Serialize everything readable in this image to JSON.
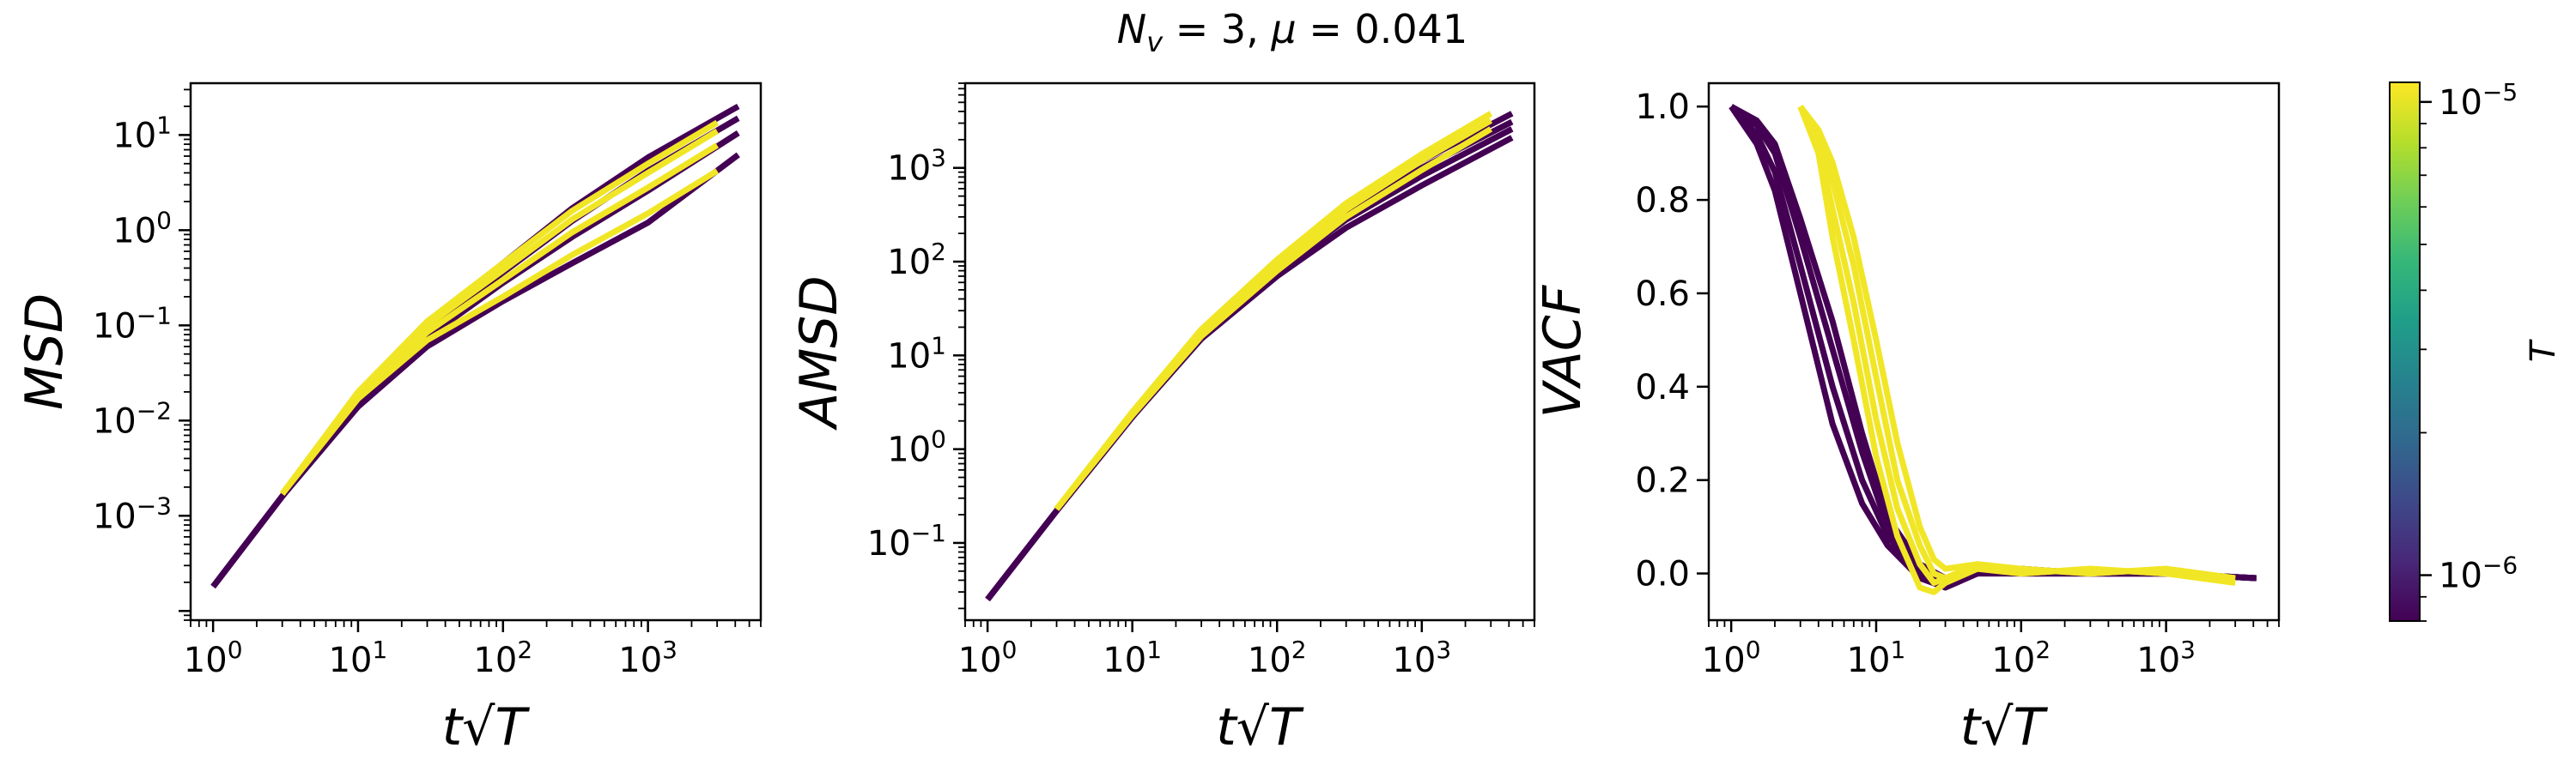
{
  "figure": {
    "title_parts": [
      "N",
      "v",
      " = 3, ",
      "μ",
      " = 0.041"
    ]
  },
  "colorbar": {
    "label": "T",
    "scale": "log",
    "range": [
      8e-07,
      1.1e-05
    ],
    "ticks": [
      {
        "value": 1e-05,
        "base": "10",
        "exp": "−5"
      },
      {
        "value": 1e-06,
        "base": "10",
        "exp": "−6"
      }
    ],
    "colormap": [
      "#440154",
      "#482878",
      "#3e4989",
      "#31688e",
      "#26828e",
      "#1f9e89",
      "#35b779",
      "#6ece58",
      "#b5de2b",
      "#fde725"
    ]
  },
  "chart_data": [
    {
      "type": "line",
      "xlabel": "t√T",
      "ylabel": "MSD",
      "xscale": "log",
      "yscale": "log",
      "xlim": [
        0.7,
        6000
      ],
      "ylim": [
        8e-05,
        35
      ],
      "xticks": [
        {
          "v": 1,
          "base": "10",
          "exp": "0"
        },
        {
          "v": 10,
          "base": "10",
          "exp": "1"
        },
        {
          "v": 100,
          "base": "10",
          "exp": "2"
        },
        {
          "v": 1000,
          "base": "10",
          "exp": "3"
        }
      ],
      "yticks": [
        {
          "v": 0.001,
          "base": "10",
          "exp": "−3"
        },
        {
          "v": 0.01,
          "base": "10",
          "exp": "−2"
        },
        {
          "v": 0.1,
          "base": "10",
          "exp": "−1"
        },
        {
          "v": 1,
          "base": "10",
          "exp": "0"
        },
        {
          "v": 10,
          "base": "10",
          "exp": "1"
        }
      ],
      "series": [
        {
          "T": 8e-07,
          "x": [
            1,
            3,
            10,
            30,
            100,
            300,
            1000,
            4200
          ],
          "y": [
            0.00018,
            0.0016,
            0.014,
            0.06,
            0.18,
            0.45,
            1.2,
            6.2
          ]
        },
        {
          "T": 8e-07,
          "x": [
            1,
            3,
            10,
            30,
            100,
            300,
            1000,
            4200
          ],
          "y": [
            0.00018,
            0.0016,
            0.015,
            0.075,
            0.28,
            0.85,
            2.6,
            10.5
          ]
        },
        {
          "T": 8e-07,
          "x": [
            1,
            3,
            10,
            30,
            100,
            300,
            1000,
            4200
          ],
          "y": [
            0.00018,
            0.0016,
            0.016,
            0.09,
            0.36,
            1.25,
            4.2,
            15.0
          ]
        },
        {
          "T": 8e-07,
          "x": [
            1,
            3,
            10,
            30,
            100,
            300,
            1000,
            4200
          ],
          "y": [
            0.00018,
            0.0016,
            0.017,
            0.1,
            0.45,
            1.7,
            5.8,
            20.0
          ]
        },
        {
          "T": 1.05e-05,
          "x": [
            3,
            10,
            30,
            100,
            300,
            1000,
            3000
          ],
          "y": [
            0.0017,
            0.017,
            0.07,
            0.2,
            0.55,
            1.5,
            4.2
          ]
        },
        {
          "T": 1.05e-05,
          "x": [
            3,
            10,
            30,
            100,
            300,
            1000,
            3000
          ],
          "y": [
            0.0017,
            0.018,
            0.085,
            0.3,
            0.95,
            2.8,
            7.8
          ]
        },
        {
          "T": 1.05e-05,
          "x": [
            3,
            10,
            30,
            100,
            300,
            1000,
            3000
          ],
          "y": [
            0.0017,
            0.019,
            0.1,
            0.38,
            1.3,
            4.0,
            11.0
          ]
        },
        {
          "T": 1.05e-05,
          "x": [
            3,
            10,
            30,
            100,
            300,
            1000,
            3000
          ],
          "y": [
            0.0017,
            0.02,
            0.11,
            0.45,
            1.6,
            5.0,
            13.5
          ]
        }
      ]
    },
    {
      "type": "line",
      "xlabel": "t√T",
      "ylabel": "AMSD",
      "xscale": "log",
      "yscale": "log",
      "xlim": [
        0.7,
        6000
      ],
      "ylim": [
        0.015,
        8000
      ],
      "xticks": [
        {
          "v": 1,
          "base": "10",
          "exp": "0"
        },
        {
          "v": 10,
          "base": "10",
          "exp": "1"
        },
        {
          "v": 100,
          "base": "10",
          "exp": "2"
        },
        {
          "v": 1000,
          "base": "10",
          "exp": "3"
        }
      ],
      "yticks": [
        {
          "v": 0.1,
          "base": "10",
          "exp": "−1"
        },
        {
          "v": 1,
          "base": "10",
          "exp": "0"
        },
        {
          "v": 10,
          "base": "10",
          "exp": "1"
        },
        {
          "v": 100,
          "base": "10",
          "exp": "2"
        },
        {
          "v": 1000,
          "base": "10",
          "exp": "3"
        }
      ],
      "series": [
        {
          "T": 8e-07,
          "x": [
            1,
            3,
            10,
            30,
            100,
            300,
            1000,
            4200
          ],
          "y": [
            0.025,
            0.22,
            2.2,
            15,
            70,
            230,
            650,
            2100
          ]
        },
        {
          "T": 8e-07,
          "x": [
            1,
            3,
            10,
            30,
            100,
            300,
            1000,
            4200
          ],
          "y": [
            0.025,
            0.22,
            2.2,
            16,
            80,
            280,
            820,
            2600
          ]
        },
        {
          "T": 8e-07,
          "x": [
            1,
            3,
            10,
            30,
            100,
            300,
            1000,
            4200
          ],
          "y": [
            0.025,
            0.22,
            2.2,
            17,
            90,
            330,
            1000,
            3100
          ]
        },
        {
          "T": 8e-07,
          "x": [
            1,
            3,
            10,
            30,
            100,
            300,
            1000,
            4200
          ],
          "y": [
            0.025,
            0.22,
            2.2,
            18,
            100,
            380,
            1200,
            3800
          ]
        },
        {
          "T": 1.05e-05,
          "x": [
            3,
            10,
            30,
            100,
            300,
            1000,
            3000
          ],
          "y": [
            0.23,
            2.3,
            16,
            80,
            300,
            950,
            2600
          ]
        },
        {
          "T": 1.05e-05,
          "x": [
            3,
            10,
            30,
            100,
            300,
            1000,
            3000
          ],
          "y": [
            0.23,
            2.4,
            18,
            95,
            360,
            1200,
            3200
          ]
        },
        {
          "T": 1.05e-05,
          "x": [
            3,
            10,
            30,
            100,
            300,
            1000,
            3000
          ],
          "y": [
            0.23,
            2.5,
            19,
            105,
            420,
            1400,
            3800
          ]
        }
      ]
    },
    {
      "type": "line",
      "xlabel": "t√T",
      "ylabel": "VACF",
      "xscale": "log",
      "yscale": "linear",
      "xlim": [
        0.7,
        6000
      ],
      "ylim": [
        -0.1,
        1.05
      ],
      "xticks": [
        {
          "v": 1,
          "base": "10",
          "exp": "0"
        },
        {
          "v": 10,
          "base": "10",
          "exp": "1"
        },
        {
          "v": 100,
          "base": "10",
          "exp": "2"
        },
        {
          "v": 1000,
          "base": "10",
          "exp": "3"
        }
      ],
      "yticks": [
        {
          "v": 0.0,
          "label": "0.0"
        },
        {
          "v": 0.2,
          "label": "0.2"
        },
        {
          "v": 0.4,
          "label": "0.4"
        },
        {
          "v": 0.6,
          "label": "0.6"
        },
        {
          "v": 0.8,
          "label": "0.8"
        },
        {
          "v": 1.0,
          "label": "1.0"
        }
      ],
      "series": [
        {
          "T": 8e-07,
          "x": [
            1,
            1.5,
            2,
            3,
            5,
            8,
            12,
            20,
            30,
            50,
            100,
            300,
            1000,
            4200
          ],
          "y": [
            1.0,
            0.92,
            0.82,
            0.6,
            0.32,
            0.15,
            0.06,
            -0.01,
            -0.03,
            0.0,
            0.01,
            0.0,
            0.0,
            -0.01
          ]
        },
        {
          "T": 8e-07,
          "x": [
            1,
            1.5,
            2,
            3,
            5,
            8,
            12,
            20,
            30,
            50,
            100,
            300,
            1000,
            4200
          ],
          "y": [
            1.0,
            0.94,
            0.86,
            0.66,
            0.4,
            0.2,
            0.08,
            0.0,
            -0.03,
            0.0,
            0.01,
            0.0,
            0.0,
            -0.01
          ]
        },
        {
          "T": 8e-07,
          "x": [
            1,
            1.5,
            2,
            3,
            5,
            8,
            12,
            20,
            30,
            50,
            100,
            300,
            1000,
            4200
          ],
          "y": [
            1.0,
            0.96,
            0.9,
            0.72,
            0.48,
            0.26,
            0.1,
            0.01,
            -0.02,
            0.0,
            0.0,
            0.0,
            0.0,
            -0.01
          ]
        },
        {
          "T": 8e-07,
          "x": [
            1,
            1.5,
            2,
            3,
            5,
            8,
            12,
            20,
            30,
            50,
            100,
            300,
            1000,
            4200
          ],
          "y": [
            1.0,
            0.97,
            0.92,
            0.76,
            0.54,
            0.3,
            0.12,
            0.02,
            -0.01,
            0.01,
            0.0,
            0.0,
            0.0,
            -0.01
          ]
        },
        {
          "T": 1.05e-05,
          "x": [
            3,
            4,
            5,
            7,
            10,
            14,
            20,
            25,
            30,
            50,
            100,
            300,
            1000,
            3000
          ],
          "y": [
            1.0,
            0.9,
            0.72,
            0.5,
            0.25,
            0.08,
            -0.03,
            -0.04,
            -0.02,
            0.01,
            0.0,
            0.01,
            0.0,
            -0.02
          ]
        },
        {
          "T": 1.05e-05,
          "x": [
            3,
            4,
            5,
            7,
            10,
            14,
            20,
            25,
            30,
            50,
            100,
            300,
            1000,
            3000
          ],
          "y": [
            1.0,
            0.92,
            0.78,
            0.58,
            0.33,
            0.14,
            0.02,
            -0.02,
            -0.01,
            0.01,
            0.01,
            0.0,
            0.01,
            -0.01
          ]
        },
        {
          "T": 1.05e-05,
          "x": [
            3,
            4,
            5,
            7,
            10,
            14,
            20,
            25,
            30,
            50,
            100,
            300,
            1000,
            3000
          ],
          "y": [
            1.0,
            0.94,
            0.84,
            0.66,
            0.42,
            0.2,
            0.06,
            0.0,
            -0.01,
            0.02,
            0.0,
            0.01,
            0.0,
            -0.01
          ]
        },
        {
          "T": 1.05e-05,
          "x": [
            3,
            4,
            5,
            7,
            10,
            14,
            20,
            25,
            30,
            50,
            100,
            300,
            1000,
            3000
          ],
          "y": [
            1.0,
            0.95,
            0.88,
            0.72,
            0.5,
            0.28,
            0.1,
            0.03,
            0.01,
            0.02,
            0.01,
            0.0,
            0.01,
            -0.02
          ]
        }
      ]
    }
  ]
}
